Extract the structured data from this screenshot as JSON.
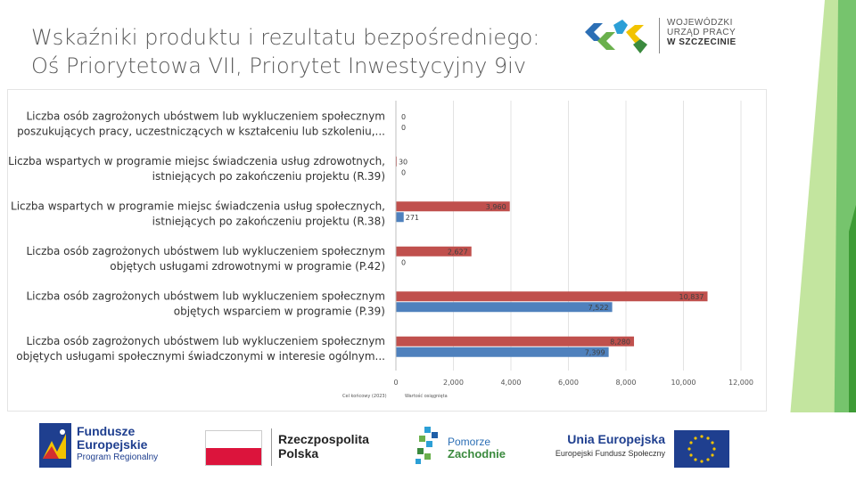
{
  "title": {
    "line1": "Wskaźniki produktu i rezultatu bezpośredniego:",
    "line2": "Oś Priorytetowa VII, Priorytet Inwestycyjny 9iv"
  },
  "header_logo": {
    "line1": "WOJEWÓDZKI",
    "line2": "URZĄD PRACY",
    "line3": "W SZCZECINIE"
  },
  "colors": {
    "target": "#c0504d",
    "achieved": "#4f81bd",
    "green_light": "#92d050",
    "green_dark": "#3d9b35"
  },
  "chart_data": {
    "type": "bar",
    "orientation": "horizontal",
    "categories": [
      [
        "Liczba osób zagrożonych ubóstwem lub wykluczeniem społecznym",
        "poszukujących pracy, uczestniczących w kształceniu lub szkoleniu,..."
      ],
      [
        "Liczba wspartych w programie miejsc świadczenia usług zdrowotnych,",
        "istniejących po zakończeniu projektu (R.39)"
      ],
      [
        "Liczba wspartych w programie miejsc świadczenia usług społecznych,",
        "istniejących po zakończeniu projektu (R.38)"
      ],
      [
        "Liczba osób zagrożonych ubóstwem lub wykluczeniem społecznym",
        "objętych usługami zdrowotnymi w programie (P.42)"
      ],
      [
        "Liczba osób zagrożonych ubóstwem lub wykluczeniem społecznym",
        "objętych wsparciem w programie (P.39)"
      ],
      [
        "Liczba osób zagrożonych ubóstwem lub wykluczeniem społecznym",
        "objętych usługami społecznymi świadczonymi w interesie ogólnym..."
      ]
    ],
    "series": [
      {
        "name": "Cel końcowy (2023)",
        "values": [
          0,
          30,
          3960,
          2627,
          10837,
          8280
        ],
        "labels": [
          "0",
          "30",
          "3,960",
          "2,627",
          "10,837",
          "8,280"
        ]
      },
      {
        "name": "Wartość osiągnięta",
        "values": [
          0,
          0,
          271,
          0,
          7522,
          7399
        ],
        "labels": [
          "0",
          "0",
          "271",
          "0",
          "7,522",
          "7,399"
        ]
      }
    ],
    "xlim": [
      0,
      12000
    ],
    "xticks": [
      "0",
      "2,000",
      "4,000",
      "6,000",
      "8,000",
      "10,000",
      "12,000"
    ],
    "legend_position": "bottom-left",
    "grid": true
  },
  "footer": {
    "fe_line1": "Fundusze",
    "fe_line2": "Europejskie",
    "fe_line3": "Program Regionalny",
    "rp_line1": "Rzeczpospolita",
    "rp_line2": "Polska",
    "pz_line1": "Pomorze",
    "pz_line2": "Zachodnie",
    "ue_line1": "Unia Europejska",
    "ue_line2": "Europejski Fundusz Społeczny"
  }
}
